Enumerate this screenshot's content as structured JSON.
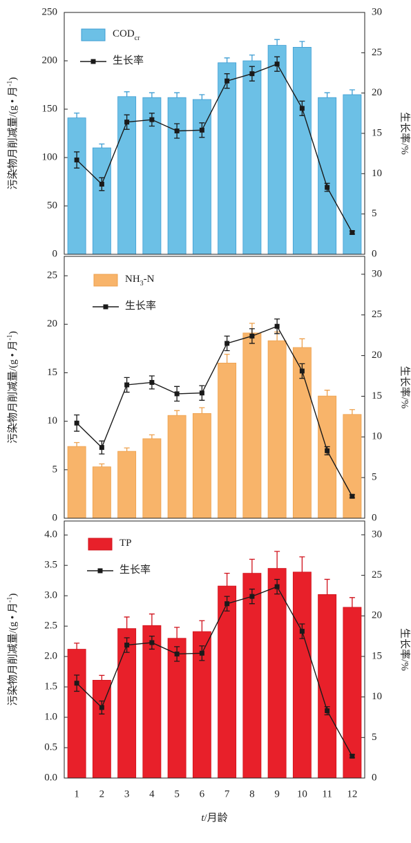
{
  "chart_data": [
    {
      "type": "bar_line",
      "categories": [
        "1",
        "2",
        "3",
        "4",
        "5",
        "6",
        "7",
        "8",
        "9",
        "10",
        "11",
        "12"
      ],
      "ylim": [
        0,
        250
      ],
      "yticks": [
        0,
        50,
        100,
        150,
        200,
        250
      ],
      "y2lim": [
        0,
        30
      ],
      "y2ticks": [
        0,
        5,
        10,
        15,
        20,
        25,
        30
      ],
      "ylabel_parts": [
        "污染物月削减量/(g • 月",
        "-1",
        ")"
      ],
      "y2label": "生长率/%",
      "series": [
        {
          "type": "bar",
          "name_parts": [
            "COD",
            "cr"
          ],
          "color": "#6cc0e6",
          "edge": "#3d9dd3",
          "values": [
            141,
            110,
            163,
            162,
            162,
            160,
            198,
            200,
            216,
            214,
            162,
            165
          ],
          "errors": [
            5,
            4,
            5,
            5,
            5,
            5,
            5,
            6,
            6,
            6,
            5,
            5
          ]
        },
        {
          "type": "line",
          "axis": "y2",
          "name_parts": [
            "生长率"
          ],
          "color": "#1a1a1a",
          "values": [
            11.7,
            8.7,
            16.4,
            16.7,
            15.3,
            15.4,
            21.5,
            22.4,
            23.6,
            18.1,
            8.3,
            2.7
          ],
          "errors": [
            1.0,
            0.8,
            0.9,
            0.8,
            0.9,
            0.9,
            0.9,
            0.9,
            0.9,
            0.9,
            0.5,
            0.2
          ]
        }
      ]
    },
    {
      "type": "bar_line",
      "categories": [
        "1",
        "2",
        "3",
        "4",
        "5",
        "6",
        "7",
        "8",
        "9",
        "10",
        "11",
        "12"
      ],
      "ylim": [
        0,
        27
      ],
      "yticks": [
        0,
        5,
        10,
        15,
        20,
        25
      ],
      "y2lim": [
        0,
        32.2
      ],
      "y2ticks": [
        0,
        5,
        10,
        15,
        20,
        25,
        30
      ],
      "ylabel_parts": [
        "污染物月削减量/(g • 月",
        "-1",
        ")"
      ],
      "y2label": "生长率/%",
      "series": [
        {
          "type": "bar",
          "name_parts": [
            "NH",
            "3",
            "-N"
          ],
          "color": "#f8b46a",
          "edge": "#eda04c",
          "values": [
            7.4,
            5.3,
            6.9,
            8.2,
            10.6,
            10.8,
            16.0,
            19.1,
            18.3,
            17.6,
            12.6,
            10.7
          ],
          "errors": [
            0.4,
            0.3,
            0.35,
            0.4,
            0.5,
            0.6,
            0.9,
            1.0,
            0.9,
            0.9,
            0.6,
            0.5
          ]
        },
        {
          "type": "line",
          "axis": "y2",
          "name_parts": [
            "生长率"
          ],
          "color": "#1a1a1a",
          "values": [
            11.7,
            8.7,
            16.4,
            16.7,
            15.3,
            15.4,
            21.5,
            22.4,
            23.6,
            18.1,
            8.3,
            2.7
          ],
          "errors": [
            1.0,
            0.8,
            0.9,
            0.8,
            0.9,
            0.9,
            0.9,
            0.9,
            0.9,
            0.9,
            0.5,
            0.2
          ]
        }
      ]
    },
    {
      "type": "bar_line",
      "categories": [
        "1",
        "2",
        "3",
        "4",
        "5",
        "6",
        "7",
        "8",
        "9",
        "10",
        "11",
        "12"
      ],
      "ylim": [
        0,
        4.23
      ],
      "yticks": [
        {
          "value": 0,
          "label": "0.0"
        },
        0.5,
        {
          "value": 1,
          "label": "1.0"
        },
        1.5,
        {
          "value": 2,
          "label": "2.0"
        },
        2.5,
        {
          "value": 3,
          "label": "3.0"
        },
        3.5,
        {
          "value": 4,
          "label": "4.0"
        }
      ],
      "y2lim": [
        0,
        31.7
      ],
      "y2ticks": [
        0,
        5,
        10,
        15,
        20,
        25,
        30
      ],
      "ylabel_parts": [
        "污染物月削减量/(g • 月",
        "-1",
        ")"
      ],
      "y2label": "生长率/%",
      "xlabel_italic": "t",
      "xlabel": "/月龄",
      "series": [
        {
          "type": "bar",
          "name_parts": [
            "TP"
          ],
          "color": "#e8202a",
          "edge": "#d0101a",
          "values": [
            2.12,
            1.61,
            2.46,
            2.51,
            2.3,
            2.41,
            3.16,
            3.37,
            3.45,
            3.39,
            3.02,
            2.81
          ],
          "errors": [
            0.1,
            0.08,
            0.19,
            0.19,
            0.18,
            0.18,
            0.21,
            0.23,
            0.28,
            0.25,
            0.25,
            0.16
          ]
        },
        {
          "type": "line",
          "axis": "y2",
          "name_parts": [
            "生长率"
          ],
          "color": "#1a1a1a",
          "values": [
            11.7,
            8.7,
            16.4,
            16.7,
            15.3,
            15.4,
            21.5,
            22.4,
            23.6,
            18.1,
            8.3,
            2.7
          ],
          "errors": [
            1.0,
            0.8,
            0.9,
            0.8,
            0.9,
            0.9,
            0.9,
            0.9,
            0.9,
            0.9,
            0.5,
            0.2
          ]
        }
      ]
    }
  ]
}
